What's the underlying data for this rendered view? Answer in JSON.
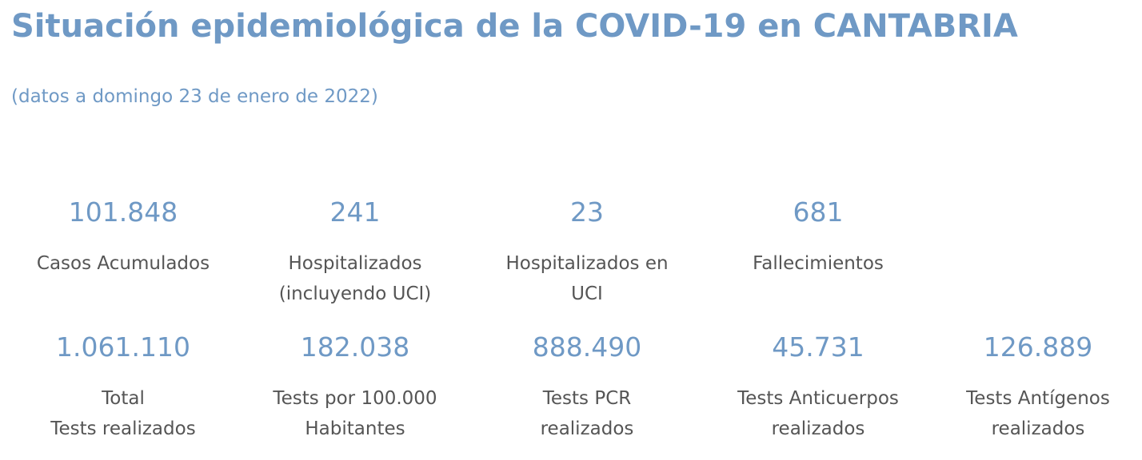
{
  "header": {
    "title": "Situación epidemiológica de la COVID-19 en CANTABRIA",
    "date": "(datos a domingo 23 de enero de 2022)"
  },
  "stats_row1": [
    {
      "value": "101.848",
      "label_line1": "Casos Acumulados",
      "label_line2": ""
    },
    {
      "value": "241",
      "label_line1": "Hospitalizados",
      "label_line2": "(incluyendo UCI)"
    },
    {
      "value": "23",
      "label_line1": "Hospitalizados en",
      "label_line2": "UCI"
    },
    {
      "value": "681",
      "label_line1": "Fallecimientos",
      "label_line2": ""
    }
  ],
  "stats_row2": [
    {
      "value": "1.061.110",
      "label_line1": "Total",
      "label_line2": "Tests realizados"
    },
    {
      "value": "182.038",
      "label_line1": "Tests por 100.000",
      "label_line2": "Habitantes"
    },
    {
      "value": "888.490",
      "label_line1": "Tests PCR",
      "label_line2": "realizados"
    },
    {
      "value": "45.731",
      "label_line1": "Tests Anticuerpos",
      "label_line2": "realizados"
    },
    {
      "value": "126.889",
      "label_line1": "Tests Antígenos",
      "label_line2": "realizados"
    }
  ],
  "colors": {
    "accent": "#6f99c5",
    "label_text": "#555555",
    "background": "#ffffff"
  }
}
